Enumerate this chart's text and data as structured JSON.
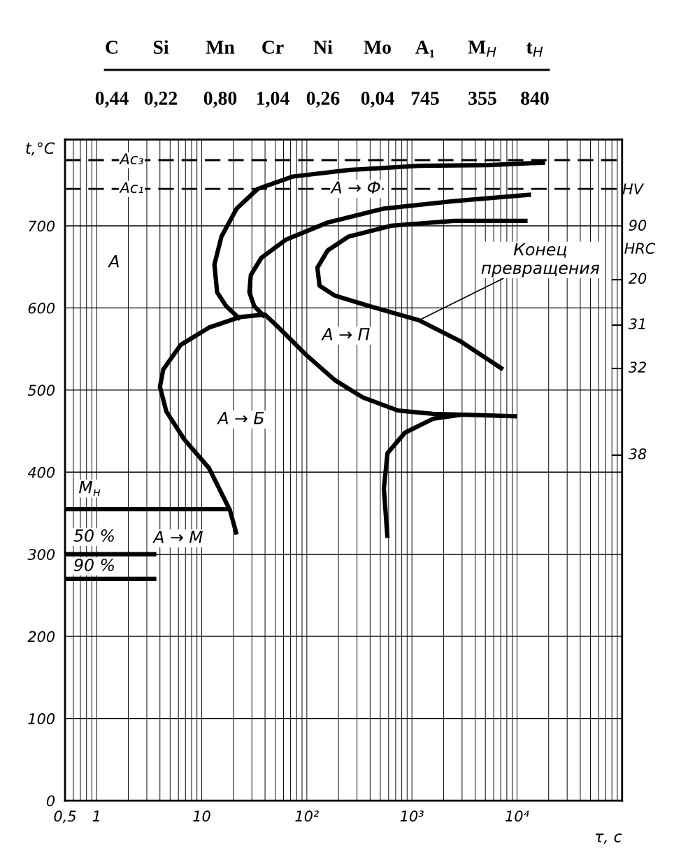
{
  "chart_data": {
    "type": "line",
    "xlabel": "τ, с",
    "ylabel": "t,°C",
    "log": "x",
    "grid": true,
    "line_style": "solid",
    "marker": "none",
    "xlim": [
      0.5,
      100000
    ],
    "ylim": [
      0,
      805
    ],
    "xticks": [
      {
        "value": 0.5,
        "label": "0,5"
      },
      1,
      10,
      {
        "value": 100,
        "label": "10²"
      },
      {
        "value": 1000,
        "label": "10³"
      },
      {
        "value": 10000,
        "label": "10⁴"
      }
    ],
    "yticks": [
      0,
      100,
      200,
      300,
      400,
      500,
      600,
      700
    ],
    "ref_lines": [
      {
        "axis": "y",
        "value": 780,
        "label": "Ac₃",
        "line_style": "dashed",
        "color": "#000000"
      },
      {
        "axis": "y",
        "value": 745,
        "label": "Ac₁",
        "line_style": "dashed",
        "color": "#000000"
      }
    ],
    "series": [
      {
        "color": "#000000",
        "x": [
          18500,
          5410,
          1166,
          251,
          73.6,
          34.1,
          21.5,
          15.4,
          13.2,
          14.0,
          17.1,
          23.3
        ],
        "values": [
          777,
          774,
          773,
          768,
          760,
          745,
          721,
          687,
          653,
          619,
          602,
          586
        ]
      },
      {
        "color": "#000000",
        "x": [
          13600,
          2512,
          541,
          158,
          63,
          36.9,
          29.3,
          28.4,
          31.6,
          39.8
        ],
        "values": [
          738,
          730,
          721,
          704,
          683,
          661,
          640,
          619,
          602,
          589
        ]
      },
      {
        "color": "#000000",
        "x": [
          12600,
          2512,
          631,
          251,
          158,
          126,
          132,
          185,
          398,
          1166,
          2930,
          7360
        ],
        "values": [
          706,
          706,
          700,
          687,
          670,
          649,
          627,
          615,
          602,
          585,
          559,
          525
        ]
      },
      {
        "color": "#000000",
        "x": [
          21.5,
          18.5,
          11.7,
          6.8,
          4.6,
          4.0,
          4.3,
          6.3,
          11.7,
          23.3,
          39.8,
          54,
          100,
          185,
          341,
          736,
          1585,
          10000
        ],
        "values": [
          324,
          354,
          405,
          440,
          474,
          504,
          525,
          555,
          576,
          589,
          592,
          576,
          542,
          512,
          491,
          475,
          471,
          468
        ]
      },
      {
        "color": "#000000",
        "x": [
          585,
          541,
          585,
          857,
          1585,
          2930
        ],
        "values": [
          320,
          380,
          423,
          448,
          465,
          470
        ]
      },
      {
        "color": "#000000",
        "x": [
          0.5,
          18.5
        ],
        "values": [
          355,
          355
        ]
      },
      {
        "color": "#000000",
        "x": [
          0.5,
          3.7
        ],
        "values": [
          300,
          300
        ]
      },
      {
        "color": "#000000",
        "x": [
          0.5,
          3.7
        ],
        "values": [
          270,
          270
        ]
      }
    ],
    "annotations": [
      "C",
      "Si",
      "Mn",
      "Cr",
      "Ni",
      "Mo",
      "A₁",
      "M$_{Н}$",
      "t$_{Н}$",
      "0,44",
      "0,22",
      "0,80",
      "1,04",
      "0,26",
      "0,04",
      "745",
      "355",
      "840",
      "HV",
      "90",
      "HRC",
      "20",
      "31",
      "32",
      "38",
      "A → П",
      "A → Б",
      "A → M",
      "50 %",
      "90 %",
      {
        "text": "A",
        "x": 1.47,
        "y": 655
      },
      {
        "text": "A → Ф",
        "x": 294,
        "y": 745
      },
      {
        "text": "M$_{н}$",
        "x": 0.86,
        "y": 380
      },
      {
        "text": "Конец\nпревращения",
        "x": 1166,
        "y": 585
      }
    ]
  }
}
